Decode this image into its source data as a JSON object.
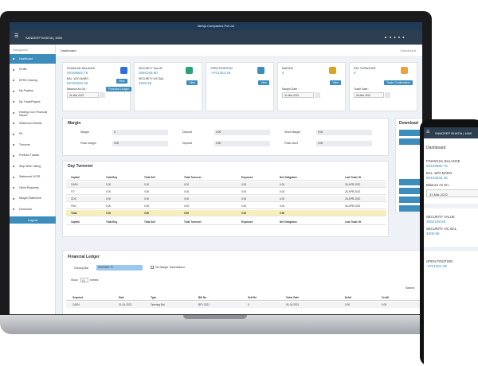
{
  "header": {
    "company": "Mehjo Companies Pvt Ltd",
    "user": "SANDEEP BHATIA | 4000"
  },
  "sidebar": {
    "heading": "Navigation",
    "items": [
      "Dashboard",
      "Profile",
      "DPHD Holding",
      "My Position",
      "My Trade/Payout",
      "Holding Cum Financial Report",
      "Settlement Details",
      "P/L",
      "Turnover",
      "Portfolio Tracker",
      "Strip Wise Listing",
      "Statement Of PR",
      "Client Requests",
      "Margin Statement",
      "Download"
    ],
    "logout": "Logout"
  },
  "breadcrumb": {
    "title": "Dashboard",
    "right": "Dashboard"
  },
  "cards": [
    {
      "fields": [
        {
          "label": "FINANCIAL BALANCE",
          "value": "59109682.76"
        },
        {
          "label": "BAL. W/O MARG",
          "value": "59103632.46"
        }
      ],
      "date_label": "Balance As On :",
      "date": "31-Mar-2022",
      "buttons": [
        "View",
        "Financial Ledger"
      ]
    },
    {
      "fields": [
        {
          "label": "SECURITY VALUE",
          "value": "3650159.80"
        },
        {
          "label": "SECURITY A/C BAL",
          "value": "4500.66"
        }
      ],
      "buttons": [
        "View"
      ]
    },
    {
      "fields": [
        {
          "label": "OPEN POSITION",
          "value": "-4701304.28"
        }
      ],
      "buttons": [
        "View"
      ]
    },
    {
      "fields": [
        {
          "label": "MARGIN",
          "value": "0"
        }
      ],
      "date_label": "Margin Date :",
      "date": "31-Mar-2022",
      "buttons": [
        "View"
      ]
    },
    {
      "fields": [
        {
          "label": "DAY TURNOVER",
          "value": "0"
        }
      ],
      "date_label": "Trade Date :",
      "date": "08-Mar-2022",
      "buttons": [
        "Trade Confirmation"
      ]
    }
  ],
  "margin": {
    "title": "Margin",
    "fields": [
      {
        "label": "Margin",
        "value": "0"
      },
      {
        "label": "Deposit",
        "value": "0.00"
      },
      {
        "label": "Short Margin",
        "value": "0.00"
      },
      {
        "label": "Peak margin",
        "value": "0.00"
      },
      {
        "label": "Deposit",
        "value": "0.00"
      },
      {
        "label": "Peak short",
        "value": "0.00"
      }
    ]
  },
  "downloads": {
    "title": "Download"
  },
  "day_turnover": {
    "title": "Day Turnover",
    "columns": [
      "Capital",
      "Total Buy",
      "Total Sell",
      "Total Turnover",
      "Exposure",
      "Net Obligation",
      "Last Trade Dt"
    ],
    "rows": [
      [
        "CASH",
        "0.00",
        "0.00",
        "0.00",
        "0.00",
        "0.00",
        "26-APR-2022"
      ],
      [
        "FO",
        "0.00",
        "0.00",
        "0.00",
        "0.00",
        "0.00",
        "26-APR-2022"
      ],
      [
        "CDS",
        "0.00",
        "0.00",
        "0.00",
        "0.00",
        "0.00",
        "26-APR-2022"
      ],
      [
        "FNO",
        "0.00",
        "0.00",
        "0.00",
        "0.00",
        "0.00",
        "26-APR-2022"
      ]
    ],
    "total": [
      "Total",
      "0.00",
      "0.00",
      "0.00",
      "0.00",
      "0.00",
      ""
    ]
  },
  "ledger": {
    "title": "Financial Ledger",
    "closing_label": "Closing Bal",
    "closing_value": "59109682.76",
    "checkbox": "No Margin Transactions",
    "show": "Show",
    "entries": "10",
    "entries_label": "entries",
    "search": "Search:",
    "columns": [
      "Segment",
      "Date",
      "Type",
      "Bill No",
      "Sett No",
      "Value Date",
      "Debit",
      "Credit"
    ],
    "rows": [
      [
        "CASH",
        "01-04-2021",
        "Opening Bal",
        "BFY-2021",
        "0",
        "01-04-2021",
        "0.00",
        "0.00"
      ]
    ]
  }
}
